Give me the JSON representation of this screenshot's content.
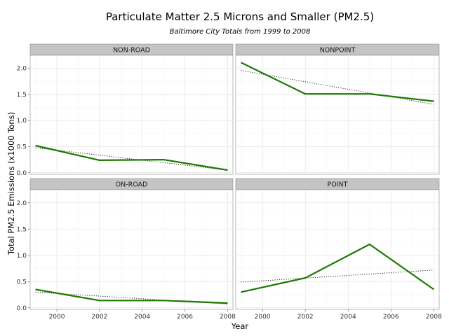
{
  "title": "Particulate Matter 2.5 Microns and Smaller (PM2.5)",
  "subtitle": "Baltimore City Totals from 1999 to 2008",
  "chart_data": {
    "type": "line",
    "title": "Particulate Matter 2.5 Microns and Smaller (PM2.5)",
    "subtitle": "Baltimore City Totals from 1999 to 2008",
    "xlabel": "Year",
    "ylabel": "Total PM2.5 Emissions (x1000 Tons)",
    "xlim": [
      1998.75,
      2008.25
    ],
    "ylim": [
      -0.03,
      2.25
    ],
    "x_ticks": [
      2000,
      2002,
      2004,
      2006,
      2008
    ],
    "y_ticks": [
      0.0,
      0.5,
      1.0,
      1.5,
      2.0
    ],
    "x_tick_labels": [
      "2000",
      "2002",
      "2004",
      "2006",
      "2008"
    ],
    "y_tick_labels": [
      "0.0",
      "0.5",
      "1.0",
      "1.5",
      "2.0"
    ],
    "grid": true,
    "line_color": "#1a7a00",
    "trend_color": "#000000",
    "panels": [
      {
        "name": "NON-ROAD",
        "x": [
          1999,
          2002,
          2005,
          2008
        ],
        "y": [
          0.52,
          0.24,
          0.25,
          0.05
        ],
        "trend": [
          [
            1999,
            0.48
          ],
          [
            2008,
            0.05
          ]
        ]
      },
      {
        "name": "NONPOINT",
        "x": [
          1999,
          2002,
          2005,
          2008
        ],
        "y": [
          2.11,
          1.51,
          1.51,
          1.37
        ],
        "trend": [
          [
            1999,
            1.96
          ],
          [
            2008,
            1.31
          ]
        ]
      },
      {
        "name": "ON-ROAD",
        "x": [
          1999,
          2002,
          2005,
          2008
        ],
        "y": [
          0.35,
          0.14,
          0.14,
          0.09
        ],
        "trend": [
          [
            1999,
            0.3
          ],
          [
            2008,
            0.07
          ]
        ]
      },
      {
        "name": "POINT",
        "x": [
          1999,
          2002,
          2005,
          2008
        ],
        "y": [
          0.3,
          0.57,
          1.21,
          0.35
        ],
        "trend": [
          [
            1999,
            0.49
          ],
          [
            2008,
            0.72
          ]
        ]
      }
    ]
  }
}
